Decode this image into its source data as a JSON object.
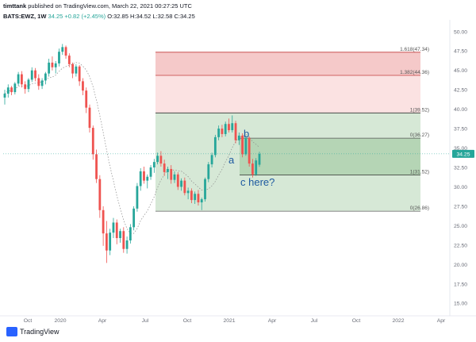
{
  "header": {
    "author": "timttank",
    "published": "published on TradingView.com, March 22, 2021 00:27:25 UTC",
    "symbol": "BATS:EWZ, 1W",
    "price": "34.25",
    "change": "+0.82 (+2.45%)",
    "open": "O:32.85",
    "high": "H:34.52",
    "low": "L:32.58",
    "close": "C:34.25"
  },
  "footer": {
    "brand": "TradingView"
  },
  "colors": {
    "up": "#26a69a",
    "down": "#ef5350",
    "fib_red_fill": "#f5c9c9",
    "fib_red_fill_light": "#fbe2e2",
    "fib_green_fill": "#d6e8d6",
    "annotation": "#1e5aa0"
  },
  "chart_data": {
    "type": "candlestick",
    "x_tick_labels": [
      "Oct",
      "2020",
      "Apr",
      "Jul",
      "Oct",
      "2021",
      "Apr",
      "Jul",
      "Oct",
      "2022",
      "Apr"
    ],
    "y_tick_labels": [
      "15.00",
      "17.50",
      "20.00",
      "22.50",
      "25.00",
      "27.50",
      "30.00",
      "32.50",
      "35.00",
      "37.50",
      "40.00",
      "42.50",
      "45.00",
      "47.50",
      "50.00"
    ],
    "ylim": [
      14,
      51
    ],
    "last_price": 34.25,
    "fib_levels": [
      {
        "label": "1.618(47.34)",
        "value": 47.34
      },
      {
        "label": "1.382(44.36)",
        "value": 44.36
      },
      {
        "label": "1(39.52)",
        "value": 39.52
      },
      {
        "label": "0(36.27)",
        "value": 36.27
      },
      {
        "label": "1(31.52)",
        "value": 31.52
      },
      {
        "label": "0(26.86)",
        "value": 26.86
      }
    ],
    "annotations": [
      "a",
      "b",
      "c here?"
    ],
    "candles": [
      [
        41.5,
        42.5,
        40.6,
        42.0
      ],
      [
        42.0,
        43.2,
        41.5,
        42.8
      ],
      [
        42.8,
        43.0,
        41.8,
        42.2
      ],
      [
        42.2,
        43.5,
        41.9,
        43.3
      ],
      [
        43.3,
        44.8,
        43.0,
        44.5
      ],
      [
        44.5,
        44.9,
        42.8,
        43.2
      ],
      [
        43.2,
        43.6,
        42.0,
        42.6
      ],
      [
        42.6,
        44.0,
        42.2,
        43.8
      ],
      [
        43.8,
        45.4,
        43.5,
        45.0
      ],
      [
        45.0,
        45.3,
        43.6,
        44.0
      ],
      [
        44.0,
        44.5,
        42.5,
        43.0
      ],
      [
        43.0,
        44.0,
        42.6,
        43.7
      ],
      [
        43.7,
        44.8,
        43.2,
        44.6
      ],
      [
        44.6,
        46.5,
        44.2,
        46.0
      ],
      [
        46.0,
        46.8,
        45.0,
        45.4
      ],
      [
        45.4,
        46.2,
        44.6,
        45.9
      ],
      [
        45.9,
        47.8,
        45.5,
        47.4
      ],
      [
        47.4,
        48.4,
        47.0,
        48.0
      ],
      [
        48.0,
        48.2,
        46.5,
        46.9
      ],
      [
        46.9,
        47.2,
        45.4,
        45.8
      ],
      [
        45.8,
        46.0,
        44.0,
        44.6
      ],
      [
        44.6,
        45.8,
        44.2,
        45.5
      ],
      [
        45.5,
        45.7,
        43.0,
        43.6
      ],
      [
        43.6,
        44.0,
        41.8,
        42.4
      ],
      [
        42.4,
        42.8,
        39.5,
        40.2
      ],
      [
        40.2,
        40.6,
        37.0,
        37.6
      ],
      [
        37.6,
        37.9,
        33.5,
        34.2
      ],
      [
        34.2,
        34.8,
        30.5,
        31.0
      ],
      [
        31.0,
        31.5,
        26.0,
        27.0
      ],
      [
        27.0,
        27.5,
        22.4,
        24.0
      ],
      [
        24.0,
        25.6,
        20.2,
        21.8
      ],
      [
        21.8,
        24.6,
        21.2,
        24.1
      ],
      [
        24.1,
        26.0,
        23.4,
        25.4
      ],
      [
        25.4,
        25.8,
        22.6,
        23.4
      ],
      [
        23.4,
        24.6,
        22.8,
        24.3
      ],
      [
        24.3,
        24.8,
        21.5,
        22.0
      ],
      [
        22.0,
        23.6,
        21.4,
        23.1
      ],
      [
        23.1,
        25.2,
        22.7,
        24.8
      ],
      [
        24.8,
        27.5,
        24.4,
        27.2
      ],
      [
        27.2,
        30.5,
        26.8,
        30.1
      ],
      [
        30.1,
        32.4,
        29.5,
        32.0
      ],
      [
        32.0,
        32.6,
        30.4,
        30.8
      ],
      [
        30.8,
        31.6,
        29.8,
        31.3
      ],
      [
        31.3,
        32.8,
        30.9,
        32.5
      ],
      [
        32.5,
        33.6,
        31.8,
        33.2
      ],
      [
        33.2,
        34.4,
        32.9,
        34.0
      ],
      [
        34.0,
        34.6,
        32.6,
        33.0
      ],
      [
        33.0,
        33.5,
        31.4,
        31.9
      ],
      [
        31.9,
        32.6,
        31.0,
        32.3
      ],
      [
        32.3,
        32.8,
        30.4,
        30.9
      ],
      [
        30.9,
        32.0,
        30.5,
        31.6
      ],
      [
        31.6,
        31.9,
        29.6,
        30.0
      ],
      [
        30.0,
        31.1,
        29.5,
        30.8
      ],
      [
        30.8,
        31.2,
        28.9,
        29.2
      ],
      [
        29.2,
        29.9,
        28.4,
        29.5
      ],
      [
        29.5,
        29.8,
        27.9,
        28.3
      ],
      [
        28.3,
        29.4,
        27.8,
        29.1
      ],
      [
        29.1,
        29.6,
        27.6,
        28.0
      ],
      [
        28.0,
        28.6,
        27.0,
        28.4
      ],
      [
        28.4,
        31.2,
        28.1,
        31.0
      ],
      [
        31.0,
        33.2,
        30.6,
        32.9
      ],
      [
        32.9,
        34.4,
        32.5,
        34.1
      ],
      [
        34.1,
        36.7,
        33.8,
        36.4
      ],
      [
        36.4,
        37.9,
        36.0,
        37.5
      ],
      [
        37.5,
        38.0,
        36.4,
        36.8
      ],
      [
        36.8,
        38.4,
        36.5,
        38.1
      ],
      [
        38.1,
        38.8,
        37.0,
        37.3
      ],
      [
        37.3,
        39.2,
        37.0,
        38.2
      ],
      [
        38.2,
        38.5,
        35.6,
        36.0
      ],
      [
        36.0,
        37.0,
        35.4,
        36.6
      ],
      [
        36.6,
        36.9,
        33.8,
        34.2
      ],
      [
        34.2,
        36.6,
        34.0,
        36.3
      ],
      [
        36.3,
        36.5,
        32.6,
        33.0
      ],
      [
        33.0,
        33.6,
        31.2,
        31.6
      ],
      [
        31.6,
        33.7,
        31.4,
        33.4
      ],
      [
        32.85,
        34.52,
        32.58,
        34.25
      ]
    ]
  }
}
